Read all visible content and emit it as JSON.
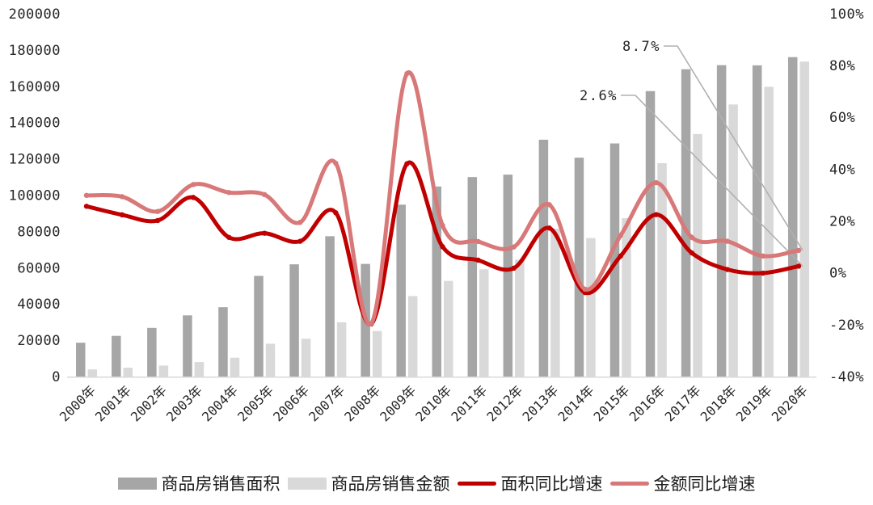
{
  "chart_data": {
    "type": "combo-bar-line",
    "title": "",
    "categories": [
      "2000年",
      "2001年",
      "2002年",
      "2003年",
      "2004年",
      "2005年",
      "2006年",
      "2007年",
      "2008年",
      "2009年",
      "2010年",
      "2011年",
      "2012年",
      "2013年",
      "2014年",
      "2015年",
      "2016年",
      "2017年",
      "2018年",
      "2019年",
      "2020年"
    ],
    "series": [
      {
        "name": "商品房销售面积",
        "type": "bar",
        "axis": "left",
        "color": "#a6a6a6",
        "values": [
          18637,
          22412,
          26808,
          33718,
          38232,
          55486,
          61857,
          77355,
          62089,
          94755,
          104765,
          109946,
          111304,
          130551,
          120649,
          128495,
          157349,
          169408,
          171654,
          171558,
          176086
        ]
      },
      {
        "name": "商品房销售金额",
        "type": "bar",
        "axis": "left",
        "color": "#d9d9d9",
        "values": [
          3935,
          4863,
          6032,
          7956,
          10376,
          18080,
          20826,
          29889,
          25068,
          44355,
          52721,
          59119,
          64456,
          81428,
          76292,
          87281,
          117627,
          133701,
          149973,
          159725,
          173613
        ]
      },
      {
        "name": "面积同比增速",
        "type": "line",
        "axis": "right",
        "color": "#c00000",
        "values": [
          25.7,
          22.4,
          20.2,
          29.1,
          13.7,
          15.3,
          12.2,
          23.2,
          -19.7,
          42.1,
          10.1,
          4.9,
          1.8,
          17.3,
          -7.6,
          6.5,
          22.5,
          7.7,
          1.3,
          -0.1,
          2.6
        ]
      },
      {
        "name": "金额同比增速",
        "type": "line",
        "axis": "right",
        "color": "#d87878",
        "values": [
          29.9,
          29.4,
          23.7,
          34.1,
          31.0,
          30.2,
          19.5,
          42.3,
          -19.5,
          76.9,
          18.3,
          12.1,
          10.0,
          26.3,
          -6.3,
          14.4,
          34.8,
          13.7,
          12.2,
          6.5,
          8.7
        ]
      }
    ],
    "left_axis": {
      "min": 0,
      "max": 200000,
      "step": 20000,
      "labels": [
        "0",
        "20000",
        "40000",
        "60000",
        "80000",
        "100000",
        "120000",
        "140000",
        "160000",
        "180000",
        "200000"
      ]
    },
    "right_axis": {
      "min": -40,
      "max": 100,
      "step": 20,
      "labels": [
        "-40%",
        "-20%",
        "0%",
        "20%",
        "40%",
        "60%",
        "80%",
        "100%"
      ]
    },
    "annotations": [
      {
        "text": "8.7%",
        "target_series": "金额同比增速",
        "target_category": "2020年",
        "value": 8.7
      },
      {
        "text": "2.6%",
        "target_series": "面积同比增速",
        "target_category": "2020年",
        "value": 2.6
      }
    ],
    "legend_position": "bottom",
    "grid": "off",
    "baseline_color": "#d9d9d9",
    "leader_line_color": "#b0b0b0"
  }
}
